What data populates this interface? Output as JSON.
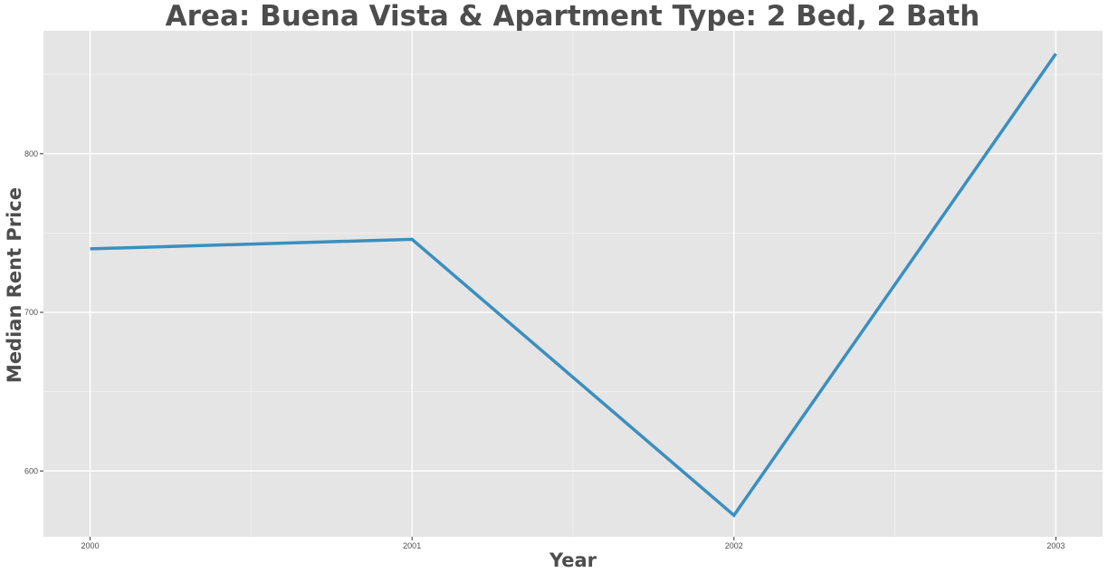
{
  "chart_data": {
    "type": "line",
    "title": "Area: Buena Vista & Apartment Type: 2 Bed, 2 Bath",
    "xlabel": "Year",
    "ylabel": "Median Rent Price",
    "x": [
      2000,
      2001,
      2002,
      2003
    ],
    "x_tick_labels": [
      "2000",
      "2001",
      "2002",
      "2003"
    ],
    "y_ticks": [
      600,
      700,
      800
    ],
    "y_tick_labels": [
      "600",
      "700",
      "800"
    ],
    "series": [
      {
        "values": [
          740,
          746,
          572,
          863
        ]
      }
    ],
    "xlim": [
      1999.855,
      2003.145
    ],
    "ylim": [
      558.5,
      877.5
    ],
    "grid": true,
    "legend": "none",
    "colors": {
      "line": "#3a8fc0",
      "panel": "#e5e5e5",
      "grid": "#ffffff",
      "text": "#4d4d4d"
    }
  }
}
